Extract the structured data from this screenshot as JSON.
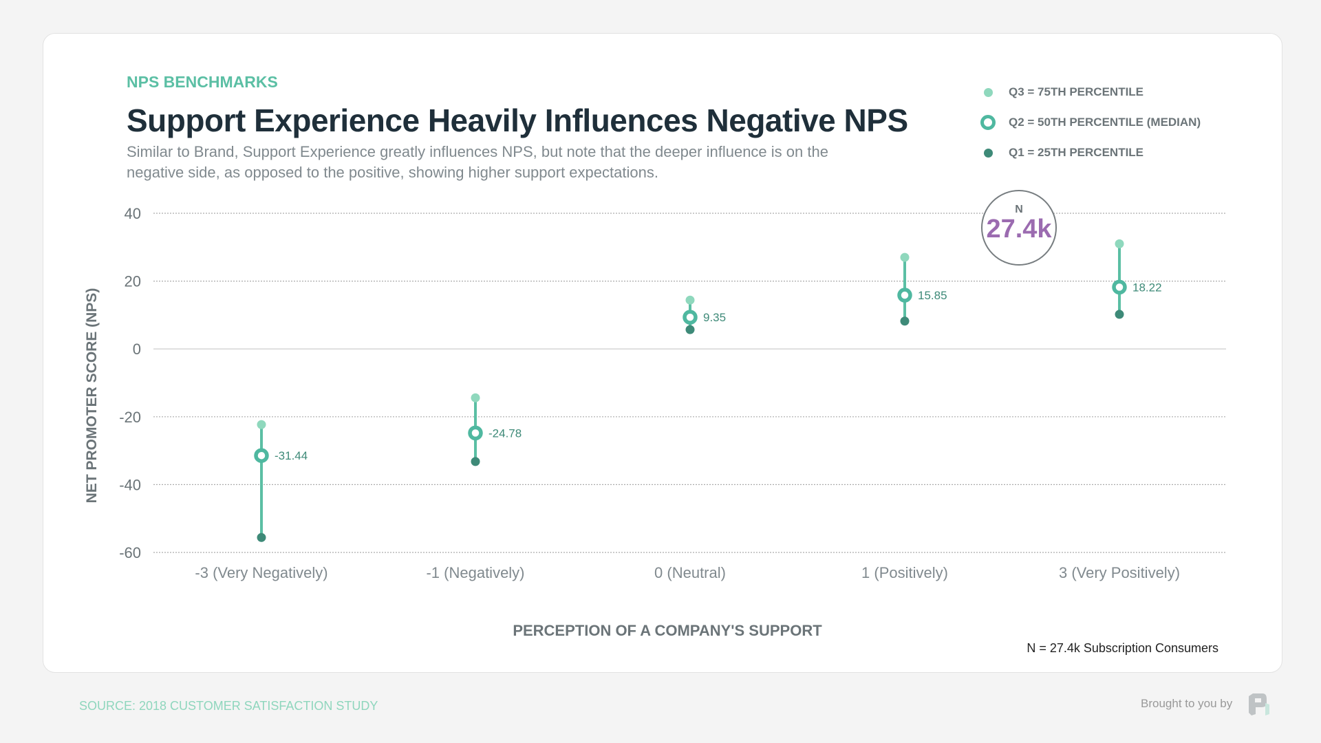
{
  "header": {
    "eyebrow": "NPS BENCHMARKS",
    "title": "Support Experience Heavily Influences Negative NPS",
    "subtitle": "Similar to Brand, Support Experience greatly influences NPS, but note that the deeper influence is on the negative side, as opposed to the positive, showing higher support expectations."
  },
  "legend": [
    {
      "label": "Q3 = 75TH PERCENTILE",
      "color": "#8fd8bd",
      "marker": "dot"
    },
    {
      "label": "Q2 = 50TH PERCENTILE (MEDIAN)",
      "color": "#4fb8a0",
      "marker": "ring"
    },
    {
      "label": "Q1 = 25TH PERCENTILE",
      "color": "#3e8a78",
      "marker": "dot"
    }
  ],
  "n_badge": {
    "label": "N",
    "value": "27.4k"
  },
  "footnote": "N = 27.4k Subscription Consumers",
  "source": "SOURCE: 2018 CUSTOMER SATISFACTION STUDY",
  "brought_by": "Brought to you by",
  "chart_data": {
    "type": "range-dot",
    "xlabel": "PERCEPTION OF A COMPANY'S SUPPORT",
    "ylabel": "NET PROMOTER SCORE (NPS)",
    "ylim": [
      -60,
      40
    ],
    "yticks": [
      "40",
      "20",
      "0",
      "-20",
      "-40",
      "-60"
    ],
    "ytick_values": [
      40,
      20,
      0,
      -20,
      -40,
      -60
    ],
    "grid": true,
    "categories": [
      "-3 (Very Negatively)",
      "-1 (Negatively)",
      "0 (Neutral)",
      "1 (Positively)",
      "3 (Very Positively)"
    ],
    "series": [
      {
        "name": "Q3 = 75TH PERCENTILE",
        "values": [
          -22.3,
          -14.4,
          14.4,
          27.0,
          31.0
        ]
      },
      {
        "name": "Q2 = 50TH PERCENTILE (MEDIAN)",
        "values": [
          -31.44,
          -24.78,
          9.35,
          15.85,
          18.22
        ]
      },
      {
        "name": "Q1 = 25TH PERCENTILE",
        "values": [
          -55.6,
          -33.2,
          5.7,
          8.2,
          10.2
        ]
      }
    ],
    "data_labels": [
      "-31.44",
      "-24.78",
      "9.35",
      "15.85",
      "18.22"
    ]
  }
}
